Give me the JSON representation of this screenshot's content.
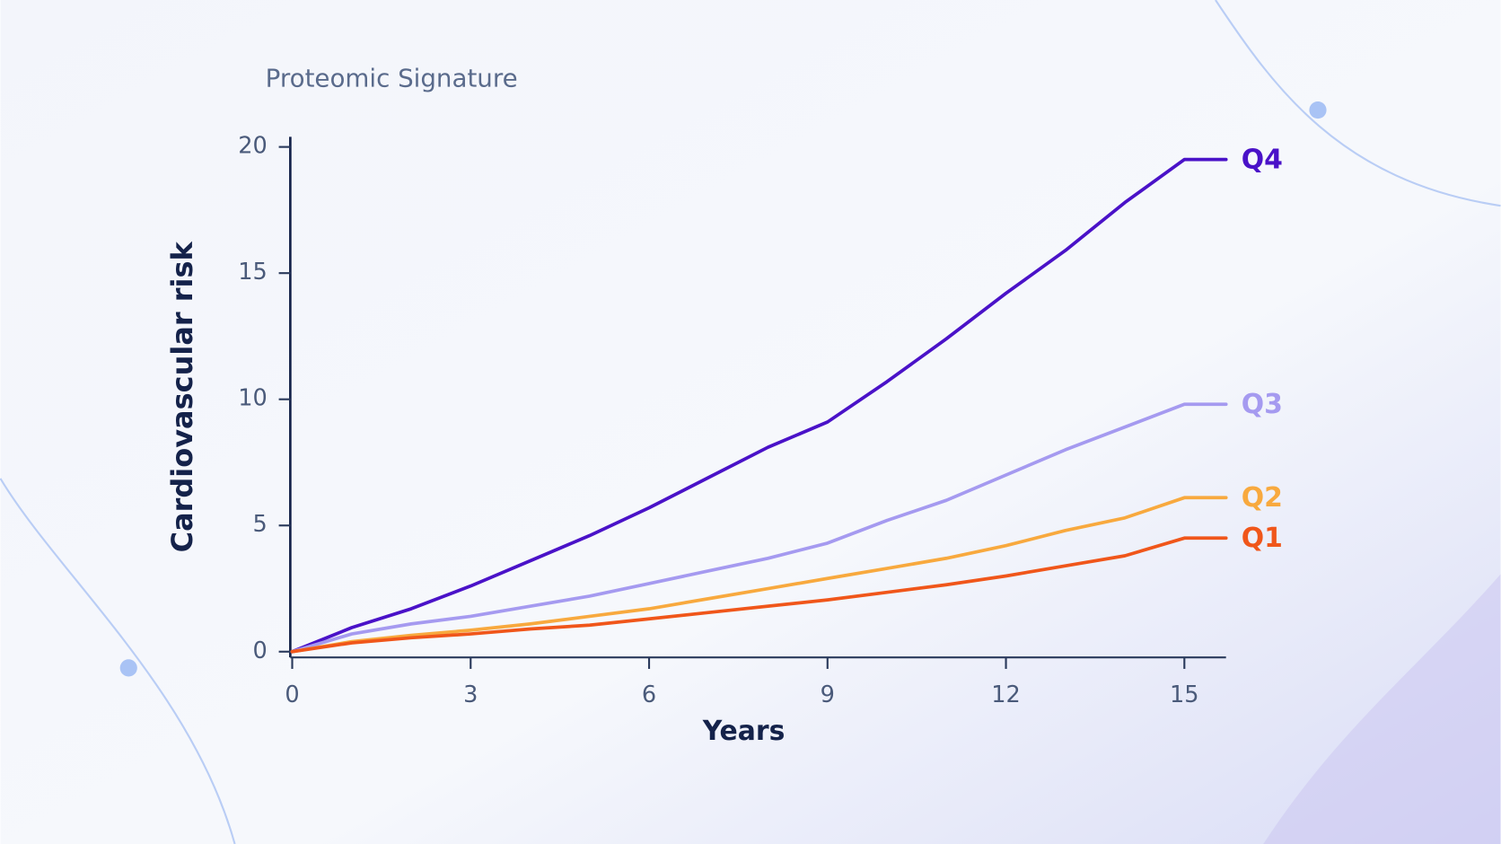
{
  "chart_data": {
    "type": "line",
    "legend": "Proteomic Signature",
    "x_label": "Years",
    "y_label": "Cardiovascular risk",
    "x": [
      0,
      1,
      2,
      3,
      4,
      5,
      6,
      7,
      8,
      9,
      10,
      11,
      12,
      13,
      14,
      15,
      15.7
    ],
    "series": [
      {
        "name": "Q4",
        "color": "#4a12c8",
        "values": [
          0,
          0.95,
          1.7,
          2.6,
          3.6,
          4.6,
          5.7,
          6.9,
          8.1,
          9.1,
          10.7,
          12.4,
          14.2,
          15.9,
          17.8,
          19.5,
          19.5
        ]
      },
      {
        "name": "Q3",
        "color": "#a59af0",
        "values": [
          0,
          0.7,
          1.1,
          1.4,
          1.8,
          2.2,
          2.7,
          3.2,
          3.7,
          4.3,
          5.2,
          6.0,
          7.0,
          8.0,
          8.9,
          9.8,
          9.8
        ]
      },
      {
        "name": "Q2",
        "color": "#f8a93e",
        "values": [
          0,
          0.4,
          0.65,
          0.85,
          1.1,
          1.4,
          1.7,
          2.1,
          2.5,
          2.9,
          3.3,
          3.7,
          4.2,
          4.8,
          5.3,
          6.1,
          6.1
        ]
      },
      {
        "name": "Q1",
        "color": "#f0561a",
        "values": [
          0,
          0.35,
          0.55,
          0.7,
          0.9,
          1.05,
          1.3,
          1.55,
          1.8,
          2.05,
          2.35,
          2.65,
          3.0,
          3.4,
          3.8,
          4.5,
          4.5
        ]
      }
    ],
    "xlim": [
      0,
      15.7
    ],
    "ylim": [
      0,
      20.4
    ],
    "xticks": [
      0,
      3,
      6,
      9,
      12,
      15
    ],
    "yticks": [
      0,
      5,
      10,
      15,
      20
    ]
  }
}
